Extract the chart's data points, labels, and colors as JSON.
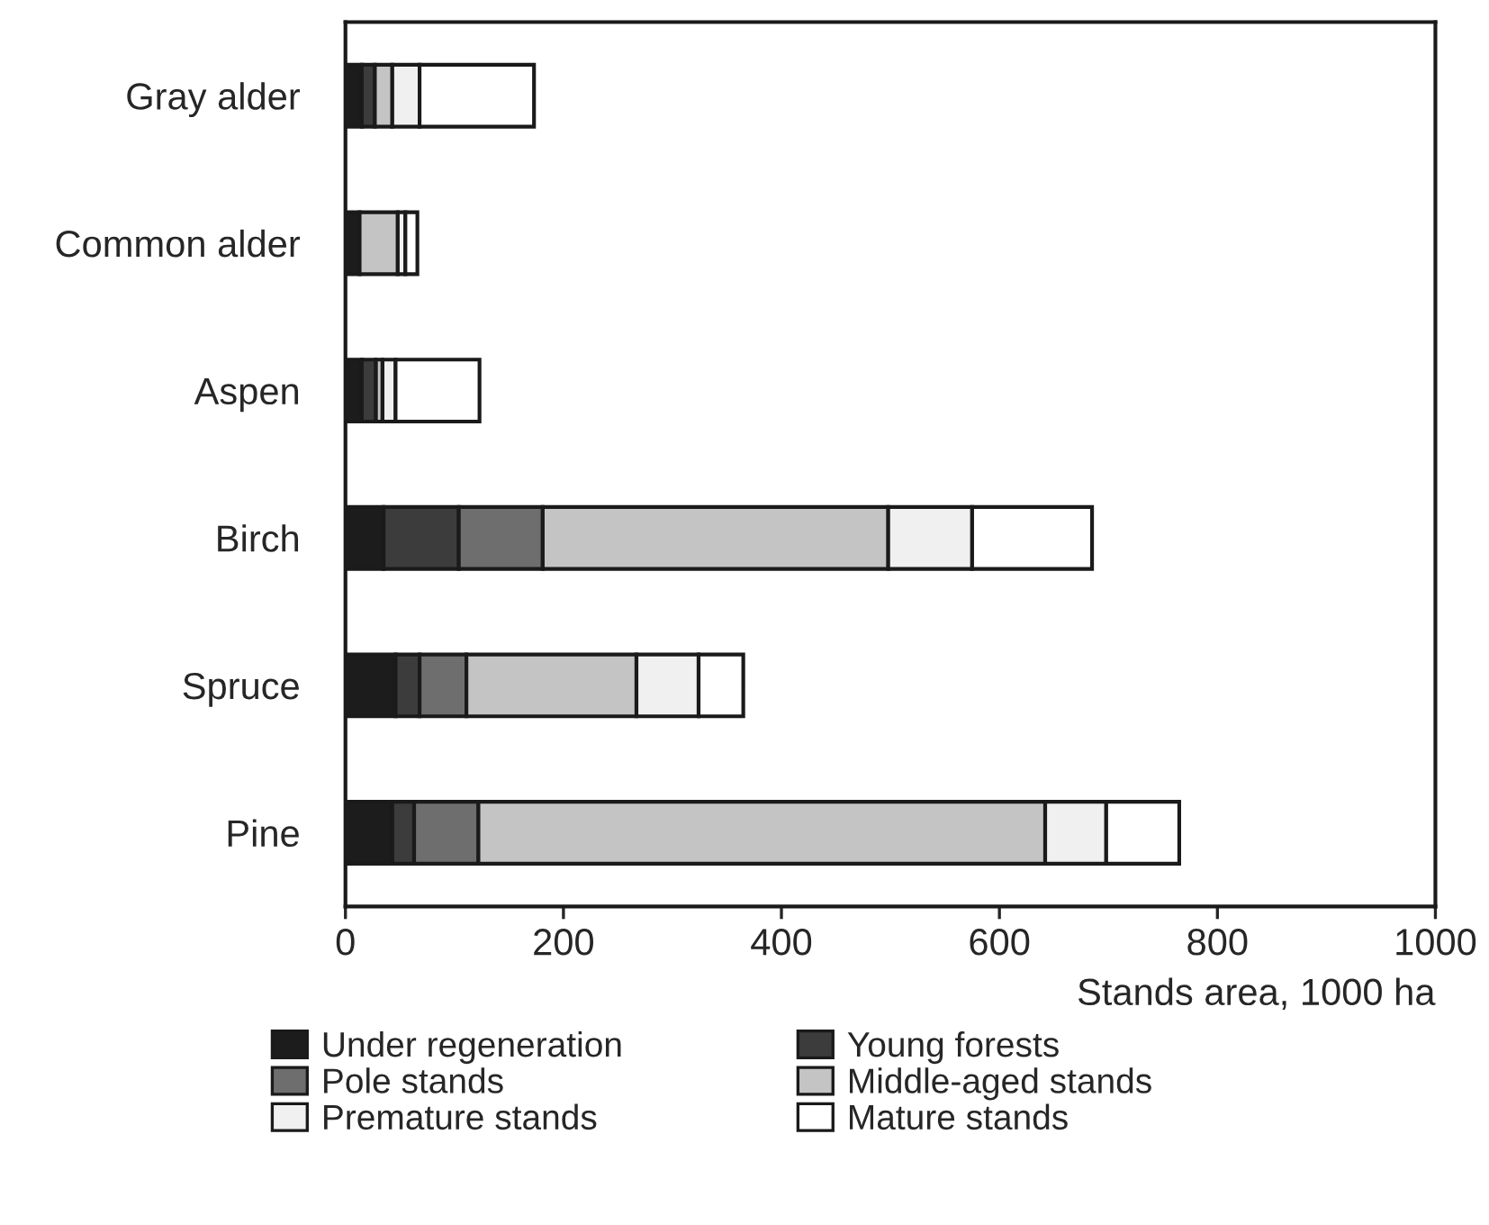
{
  "chart_data": {
    "type": "bar",
    "orientation": "horizontal",
    "stacked": true,
    "xlabel": "Stands area, 1000 ha",
    "categories": [
      "Gray alder",
      "Common alder",
      "Aspen",
      "Birch",
      "Spruce",
      "Pine"
    ],
    "series": [
      {
        "name": "Under regeneration",
        "color": "#1c1c1c",
        "values": [
          15,
          13,
          15,
          35,
          46,
          43
        ]
      },
      {
        "name": "Young forests",
        "color": "#3c3c3c",
        "values": [
          12,
          null,
          13,
          69,
          22,
          20
        ]
      },
      {
        "name": "Pole stands",
        "color": "#6e6e6e",
        "values": [
          null,
          null,
          null,
          77,
          43,
          59
        ]
      },
      {
        "name": "Middle-aged stands",
        "color": "#c4c4c4",
        "values": [
          16,
          35,
          6,
          317,
          156,
          520
        ]
      },
      {
        "name": "Premature stands",
        "color": "#f0f0f0",
        "values": [
          25,
          7,
          12,
          77,
          57,
          56
        ]
      },
      {
        "name": "Mature stands",
        "color": "#ffffff",
        "values": [
          105,
          11,
          77,
          110,
          41,
          67
        ]
      }
    ],
    "xlim": [
      0,
      1000
    ],
    "xticks": [
      0,
      200,
      400,
      600,
      800,
      1000
    ],
    "grid": false,
    "legend": "bottom"
  }
}
